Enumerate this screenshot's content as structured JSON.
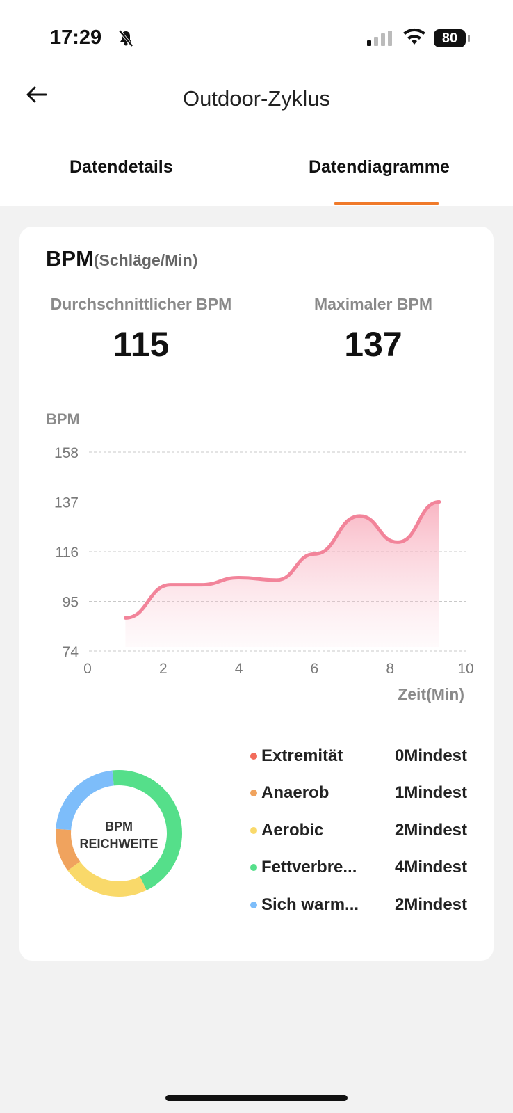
{
  "status_bar": {
    "time": "17:29",
    "battery": "80"
  },
  "header": {
    "title": "Outdoor-Zyklus"
  },
  "tabs": [
    {
      "label": "Datendetails",
      "active": false
    },
    {
      "label": "Datendiagramme",
      "active": true
    }
  ],
  "accent": "#f07a2a",
  "card": {
    "title": "BPM",
    "unit": "(Schläge/Min)",
    "stats": [
      {
        "label": "Durchschnittlicher BPM",
        "value": "115"
      },
      {
        "label": "Maximaler BPM",
        "value": "137"
      }
    ]
  },
  "chart_data": {
    "type": "area",
    "ylabel": "BPM",
    "xlabel": "Zeit(Min)",
    "yticks": [
      "158",
      "137",
      "116",
      "95",
      "74"
    ],
    "xticks": [
      "0",
      "2",
      "4",
      "6",
      "8",
      "10"
    ],
    "ylim": [
      74,
      158
    ],
    "xlim": [
      0,
      10
    ],
    "x": [
      1,
      2.2,
      3,
      4,
      5,
      6,
      7.2,
      8.2,
      9.3
    ],
    "y": [
      88,
      102,
      102,
      105,
      104,
      115,
      131,
      120,
      137
    ],
    "color": "#f2849a",
    "donut": {
      "center_line1": "BPM",
      "center_line2": "REICHWEITE"
    },
    "zones": [
      {
        "name": "Extremität",
        "value": 0,
        "label": "0Mindest",
        "color": "#f26b5b"
      },
      {
        "name": "Anaerob",
        "value": 1,
        "label": "1Mindest",
        "color": "#f0a35e"
      },
      {
        "name": "Aerobic",
        "value": 2,
        "label": "2Mindest",
        "color": "#f9d96a"
      },
      {
        "name": "Fettverbre...",
        "value": 4,
        "label": "4Mindest",
        "color": "#55df8a"
      },
      {
        "name": "Sich warm...",
        "value": 2,
        "label": "2Mindest",
        "color": "#7dbdfa"
      }
    ]
  }
}
